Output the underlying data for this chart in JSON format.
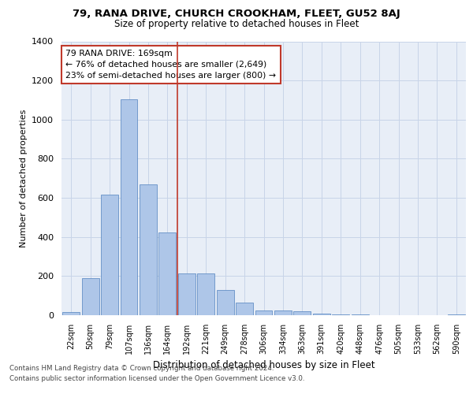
{
  "title1": "79, RANA DRIVE, CHURCH CROOKHAM, FLEET, GU52 8AJ",
  "title2": "Size of property relative to detached houses in Fleet",
  "xlabel": "Distribution of detached houses by size in Fleet",
  "ylabel": "Number of detached properties",
  "categories": [
    "22sqm",
    "50sqm",
    "79sqm",
    "107sqm",
    "136sqm",
    "164sqm",
    "192sqm",
    "221sqm",
    "249sqm",
    "278sqm",
    "306sqm",
    "334sqm",
    "363sqm",
    "391sqm",
    "420sqm",
    "448sqm",
    "476sqm",
    "505sqm",
    "533sqm",
    "562sqm",
    "590sqm"
  ],
  "values": [
    15,
    190,
    615,
    1105,
    670,
    425,
    215,
    215,
    130,
    65,
    25,
    25,
    20,
    10,
    5,
    5,
    2,
    2,
    2,
    2,
    5
  ],
  "bar_color": "#aec6e8",
  "bar_edge_color": "#4f81bd",
  "vline_x": 5.5,
  "vline_color": "#c0392b",
  "annotation_line1": "79 RANA DRIVE: 169sqm",
  "annotation_line2": "← 76% of detached houses are smaller (2,649)",
  "annotation_line3": "23% of semi-detached houses are larger (800) →",
  "annotation_box_color": "#ffffff",
  "annotation_box_edgecolor": "#c0392b",
  "ylim": [
    0,
    1400
  ],
  "yticks": [
    0,
    200,
    400,
    600,
    800,
    1000,
    1200,
    1400
  ],
  "background_color": "#e8eef7",
  "grid_color": "#c8d4e8",
  "footer1": "Contains HM Land Registry data © Crown copyright and database right 2024.",
  "footer2": "Contains public sector information licensed under the Open Government Licence v3.0."
}
